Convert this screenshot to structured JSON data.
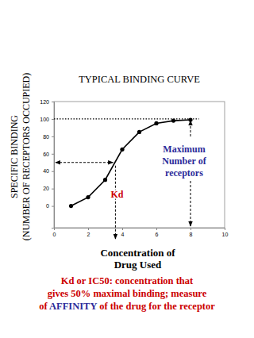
{
  "chart_data": {
    "type": "line",
    "title": "TYPICAL  BINDING  CURVE",
    "y_label": [
      "SPECIFIC BINDING",
      "(NUMBER OF RECEPTORS OCCUPIED)"
    ],
    "x_label": [
      "Concentration of",
      "Drug Used"
    ],
    "x": [
      1,
      2,
      3,
      4,
      5,
      6,
      7,
      8
    ],
    "values": [
      0,
      10,
      30,
      65,
      85,
      95,
      98,
      99
    ],
    "color": "#000000",
    "marker": "circle",
    "line_style": "solid",
    "xlim": [
      0,
      10
    ],
    "xticks": [
      0,
      2,
      4,
      6,
      8,
      10
    ],
    "ylim": [
      -25,
      120
    ],
    "yticks": [
      0,
      20,
      40,
      60,
      80,
      100,
      120
    ],
    "grid": false,
    "annotations": {
      "maximum": {
        "text": [
          "Maximum",
          "Number of",
          "receptors"
        ],
        "y": 100,
        "x": 8,
        "line_end": 8.5
      },
      "kd": {
        "text": "Kd",
        "x": 3.6,
        "y": 50
      },
      "caption": [
        [
          {
            "text": "Kd or IC50: concentration that"
          }
        ],
        [
          {
            "text": "gives 50% maximal binding; measure"
          }
        ],
        [
          {
            "text": "of "
          },
          {
            "text": "AFFINITY"
          },
          {
            "text": " of the drug for the receptor"
          }
        ]
      ]
    }
  }
}
